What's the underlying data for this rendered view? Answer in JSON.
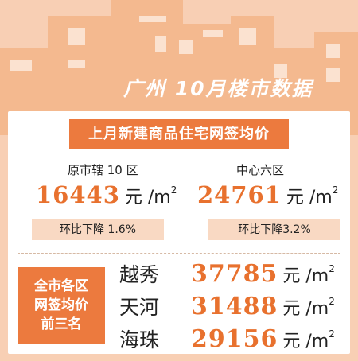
{
  "header": {
    "title": "广州 10月楼市数据"
  },
  "section": {
    "title": "上月新建商品住宅网签均价"
  },
  "regions": [
    {
      "label": "原市辖 10 区",
      "price": "16443",
      "unit": "元 /m",
      "unit_sup": "2",
      "change": "环比下降 1.6%"
    },
    {
      "label": "中心六区",
      "price": "24761",
      "unit": "元 /m",
      "unit_sup": "2",
      "change": "环比下降3.2%"
    }
  ],
  "ranking": {
    "title_lines": [
      "全市各区",
      "网签均价",
      "前三名"
    ],
    "rows": [
      {
        "district": "越秀",
        "price": "37785",
        "unit": "元 /m",
        "unit_sup": "2"
      },
      {
        "district": "天河",
        "price": "31488",
        "unit": "元 /m",
        "unit_sup": "2"
      },
      {
        "district": "海珠",
        "price": "29156",
        "unit": "元 /m",
        "unit_sup": "2"
      }
    ]
  },
  "colors": {
    "accent": "#ec7a3e",
    "background": "#f8cfb4",
    "number": "#e8712e",
    "skyline": "#f4b98f"
  }
}
